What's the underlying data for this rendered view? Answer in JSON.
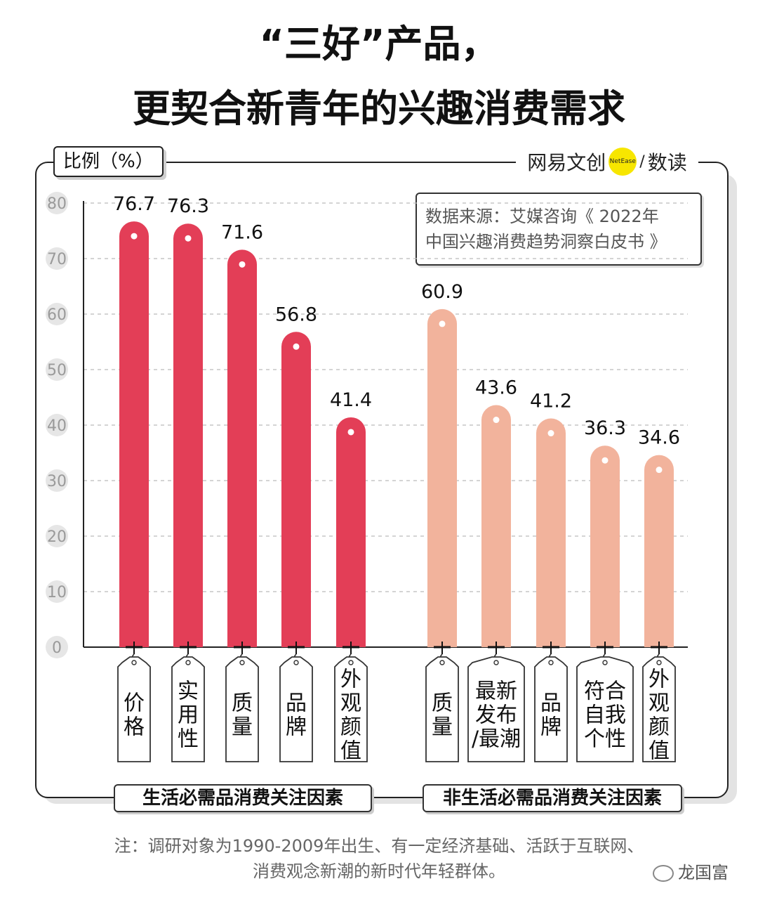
{
  "title_line1": "“三好”产品，",
  "title_line2": "更契合新青年的兴趣消费需求",
  "unit_label": "比例（%）",
  "brand": {
    "name": "网易文创",
    "logo_text": "NetEase",
    "sub": "数读"
  },
  "source_text": [
    "数据来源：艾媒咨询《 2022年",
    "中国兴趣消费趋势洞察白皮书 》"
  ],
  "group_labels": [
    "生活必需品消费关注因素",
    "非生活必需品消费关注因素"
  ],
  "note_lines": [
    "注：调研对象为1990-2009年出生、有一定经济基础、活跃于互联网、",
    "消费观念新潮的新时代年轻群体。"
  ],
  "watermark": "龙国富",
  "colors": {
    "series1": "#e33e57",
    "series2": "#f2b39c",
    "grid": "#bbbbbb",
    "tick_bg": "#e6e6e6"
  },
  "chart_data": {
    "type": "bar",
    "ylim": [
      0,
      80
    ],
    "yticks": [
      0,
      10,
      20,
      30,
      40,
      50,
      60,
      70,
      80
    ],
    "grid": true,
    "series": [
      {
        "name": "生活必需品消费关注因素",
        "categories": [
          "价格",
          "实用性",
          "质量",
          "品牌",
          "外观颜值"
        ],
        "values": [
          76.7,
          76.3,
          71.6,
          56.8,
          41.4
        ]
      },
      {
        "name": "非生活必需品消费关注因素",
        "categories": [
          "质量",
          "最新发布/最潮",
          "品牌",
          "符合自我个性",
          "外观颜值"
        ],
        "values": [
          60.9,
          43.6,
          41.2,
          36.3,
          34.6
        ]
      }
    ]
  }
}
